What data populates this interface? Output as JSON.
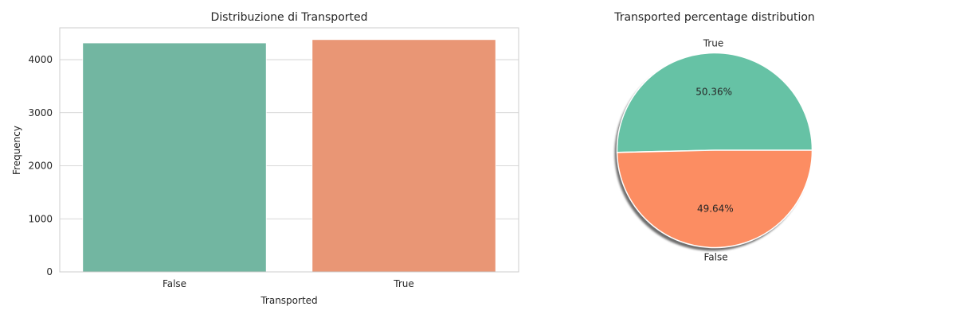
{
  "chart_data": [
    {
      "type": "bar",
      "title": "Distribuzione di Transported",
      "xlabel": "Transported",
      "ylabel": "Frequency",
      "categories": [
        "False",
        "True"
      ],
      "values": [
        4315,
        4378
      ],
      "ylim": [
        0,
        4600
      ],
      "yticks": [
        0,
        1000,
        2000,
        3000,
        4000
      ],
      "grid": true,
      "colors": [
        "#72b6a1",
        "#e99675"
      ]
    },
    {
      "type": "pie",
      "title": "Transported percentage distribution",
      "labels": [
        "True",
        "False"
      ],
      "values": [
        50.36,
        49.64
      ],
      "value_labels": [
        "50.36%",
        "49.64%"
      ],
      "colors": [
        "#66c2a5",
        "#fc8d62"
      ],
      "shadow": true
    }
  ]
}
